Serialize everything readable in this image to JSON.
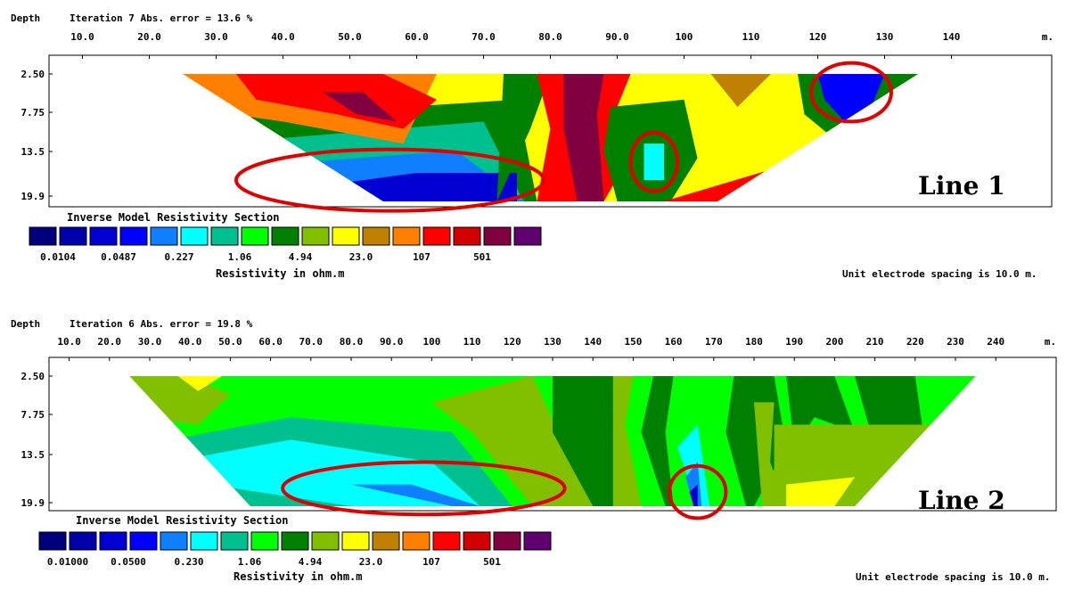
{
  "palette": [
    "#00007f",
    "#0000aa",
    "#0000d2",
    "#0000ff",
    "#0f7fff",
    "#00ffff",
    "#00c08f",
    "#00ff00",
    "#008000",
    "#80c000",
    "#ffff00",
    "#c08000",
    "#ff8000",
    "#ff0000",
    "#d20000",
    "#800040",
    "#600070"
  ],
  "highlight_color": "#e00000",
  "chart_data": [
    {
      "type": "heatmap",
      "header": {
        "depth": "Depth",
        "iteration": "Iteration 7 Abs. error = 13.6 %"
      },
      "x_ticks": [
        "10.0",
        "20.0",
        "30.0",
        "40.0",
        "50.0",
        "60.0",
        "70.0",
        "80.0",
        "90.0",
        "100",
        "110",
        "120",
        "130",
        "140"
      ],
      "x_unit": "m.",
      "x_range": [
        5,
        155
      ],
      "y_ticks": [
        "2.50",
        "7.75",
        "13.5",
        "19.9"
      ],
      "y_range": [
        2.5,
        19.9
      ],
      "legend": {
        "title": "Inverse Model Resistivity Section",
        "values": [
          "0.0104",
          "0.0487",
          "0.227",
          "1.06",
          "4.94",
          "23.0",
          "107",
          "501"
        ],
        "unit_label": "Resistivity in ohm.m"
      },
      "spacing_note": "Unit electrode spacing is 10.0 m.",
      "label": "Line 1",
      "section": {
        "x_top": [
          25,
          135
        ],
        "x_bottom": [
          55,
          105
        ]
      },
      "layers": [
        {
          "level": 10,
          "x": [
            25,
            135,
            135,
            25
          ],
          "y": [
            2.5,
            2.5,
            19.9,
            19.9
          ]
        },
        {
          "level": 8,
          "x": [
            25,
            75,
            78,
            60,
            40,
            25
          ],
          "y": [
            9,
            6,
            19.9,
            19.9,
            17,
            11
          ]
        },
        {
          "level": 6,
          "x": [
            30,
            70,
            76,
            55,
            40
          ],
          "y": [
            12,
            9,
            19.9,
            19.9,
            16
          ]
        },
        {
          "level": 4,
          "x": [
            36,
            66,
            76,
            55,
            42
          ],
          "y": [
            15,
            13,
            19.9,
            19.9,
            17
          ]
        },
        {
          "level": 2,
          "x": [
            44,
            60,
            75,
            75,
            55
          ],
          "y": [
            18,
            16,
            16,
            19.9,
            19.9
          ]
        },
        {
          "level": 12,
          "x": [
            25,
            38,
            50,
            63,
            58,
            40,
            25
          ],
          "y": [
            2.5,
            2.5,
            2.5,
            2.5,
            12,
            9,
            7
          ]
        },
        {
          "level": 13,
          "x": [
            33,
            55,
            63,
            58,
            48,
            36
          ],
          "y": [
            2.5,
            2.5,
            6,
            10,
            8,
            6
          ]
        },
        {
          "level": 15,
          "x": [
            46,
            52,
            57,
            51
          ],
          "y": [
            5,
            5,
            9,
            8
          ]
        },
        {
          "level": 8,
          "x": [
            73,
            80,
            77,
            72
          ],
          "y": [
            2.5,
            2.5,
            10,
            19.9
          ]
        },
        {
          "level": 13,
          "x": [
            78,
            92,
            90,
            93,
            88,
            78,
            80
          ],
          "y": [
            2.5,
            2.5,
            7,
            12,
            19.9,
            19.9,
            10
          ]
        },
        {
          "level": 15,
          "x": [
            82,
            88,
            87,
            88,
            84,
            82
          ],
          "y": [
            2.5,
            2.5,
            8,
            19.9,
            19.9,
            10
          ]
        },
        {
          "level": 8,
          "x": [
            89,
            100,
            102,
            98,
            90,
            88
          ],
          "y": [
            7,
            6,
            14,
            19.9,
            19.9,
            13
          ]
        },
        {
          "level": 5,
          "x": [
            94,
            97,
            97,
            94
          ],
          "y": [
            12,
            12,
            17,
            17
          ]
        },
        {
          "level": 13,
          "x": [
            97,
            115,
            105,
            100
          ],
          "y": [
            19.9,
            15,
            19.9,
            19.9
          ]
        },
        {
          "level": 11,
          "x": [
            104,
            113,
            108
          ],
          "y": [
            2.5,
            2.5,
            7
          ]
        },
        {
          "level": 8,
          "x": [
            117,
            135,
            135,
            126,
            118
          ],
          "y": [
            2.5,
            2.5,
            8,
            14,
            8
          ]
        },
        {
          "level": 3,
          "x": [
            120,
            130,
            128,
            124,
            121
          ],
          "y": [
            2.5,
            2.5,
            7,
            9,
            6
          ]
        }
      ],
      "highlights": [
        {
          "cx": 56,
          "cy": 17,
          "rx": 23,
          "ry": 4.2
        },
        {
          "cx": 95.5,
          "cy": 14.5,
          "rx": 3.5,
          "ry": 4
        },
        {
          "cx": 125,
          "cy": 5,
          "rx": 6,
          "ry": 4
        }
      ]
    },
    {
      "type": "heatmap",
      "header": {
        "depth": "Depth",
        "iteration": "Iteration 6 Abs. error = 19.8 %"
      },
      "x_ticks": [
        "10.0",
        "20.0",
        "30.0",
        "40.0",
        "50.0",
        "60.0",
        "70.0",
        "80.0",
        "90.0",
        "100",
        "110",
        "120",
        "130",
        "140",
        "150",
        "160",
        "170",
        "180",
        "190",
        "200",
        "210",
        "220",
        "230",
        "240"
      ],
      "x_unit": "m.",
      "x_range": [
        5,
        255
      ],
      "y_ticks": [
        "2.50",
        "7.75",
        "13.5",
        "19.9"
      ],
      "y_range": [
        2.5,
        19.9
      ],
      "legend": {
        "title": "Inverse Model Resistivity Section",
        "values": [
          "0.01000",
          "0.0500",
          "0.230",
          "1.06",
          "4.94",
          "23.0",
          "107",
          "501"
        ],
        "unit_label": "Resistivity in ohm.m"
      },
      "spacing_note": "Unit electrode spacing is 10.0 m.",
      "label": "Line 2",
      "section": {
        "x_top": [
          25,
          235
        ],
        "x_bottom": [
          55,
          205
        ]
      },
      "layers": [
        {
          "level": 7,
          "x": [
            25,
            235,
            235,
            25
          ],
          "y": [
            2.5,
            2.5,
            19.9,
            19.9
          ]
        },
        {
          "level": 6,
          "x": [
            25,
            65,
            105,
            120,
            100,
            55,
            25
          ],
          "y": [
            12,
            8,
            10,
            19.9,
            19.9,
            19.9,
            12
          ]
        },
        {
          "level": 5,
          "x": [
            30,
            65,
            100,
            112,
            80,
            45
          ],
          "y": [
            14.5,
            11,
            14,
            19.9,
            19.9,
            17
          ]
        },
        {
          "level": 4,
          "x": [
            80,
            95,
            112,
            105
          ],
          "y": [
            17,
            17,
            19.9,
            19.9
          ]
        },
        {
          "level": 9,
          "x": [
            25,
            40,
            50,
            42,
            28
          ],
          "y": [
            2.5,
            2.5,
            5,
            9,
            8
          ]
        },
        {
          "level": 10,
          "x": [
            37,
            48,
            42
          ],
          "y": [
            2.5,
            2.5,
            4.5
          ]
        },
        {
          "level": 9,
          "x": [
            100,
            125,
            140,
            125,
            110
          ],
          "y": [
            6,
            2.5,
            19.9,
            19.9,
            10
          ]
        },
        {
          "level": 8,
          "x": [
            130,
            145,
            150,
            140,
            130
          ],
          "y": [
            2.5,
            2.5,
            19.9,
            19.9,
            10
          ]
        },
        {
          "level": 9,
          "x": [
            145,
            150,
            148,
            152,
            145
          ],
          "y": [
            2.5,
            2.5,
            9,
            19.9,
            19.9
          ]
        },
        {
          "level": 8,
          "x": [
            155,
            160,
            158,
            160,
            158,
            152
          ],
          "y": [
            2.5,
            2.5,
            10,
            19.9,
            19.9,
            10
          ]
        },
        {
          "level": 8,
          "x": [
            175,
            185,
            188,
            180,
            178,
            173
          ],
          "y": [
            2.5,
            2.5,
            12,
            19.9,
            19.9,
            10
          ]
        },
        {
          "level": 9,
          "x": [
            180,
            185,
            184,
            188,
            182
          ],
          "y": [
            6,
            6,
            14,
            19.9,
            19.9
          ]
        },
        {
          "level": 8,
          "x": [
            188,
            200,
            205,
            195,
            190
          ],
          "y": [
            2.5,
            2.5,
            10,
            8,
            12
          ]
        },
        {
          "level": 8,
          "x": [
            205,
            220,
            222,
            210
          ],
          "y": [
            2.5,
            2.5,
            10,
            12
          ]
        },
        {
          "level": 9,
          "x": [
            185,
            235,
            235,
            230,
            205,
            185
          ],
          "y": [
            9,
            9,
            11,
            12,
            19.9,
            19.9
          ]
        },
        {
          "level": 10,
          "x": [
            188,
            205,
            200,
            188
          ],
          "y": [
            17,
            16,
            19.9,
            19.9
          ]
        },
        {
          "level": 5,
          "x": [
            161,
            166,
            169,
            166
          ],
          "y": [
            12,
            9,
            19.9,
            19.9
          ]
        },
        {
          "level": 4,
          "x": [
            163,
            166,
            167,
            165
          ],
          "y": [
            16,
            14,
            19.9,
            19.9
          ]
        },
        {
          "level": 2,
          "x": [
            164,
            166,
            166,
            165
          ],
          "y": [
            18,
            17,
            19.9,
            19.9
          ]
        }
      ],
      "highlights": [
        {
          "cx": 98,
          "cy": 17.5,
          "rx": 35,
          "ry": 3.5
        },
        {
          "cx": 166,
          "cy": 18,
          "rx": 7,
          "ry": 3.5
        }
      ]
    }
  ]
}
